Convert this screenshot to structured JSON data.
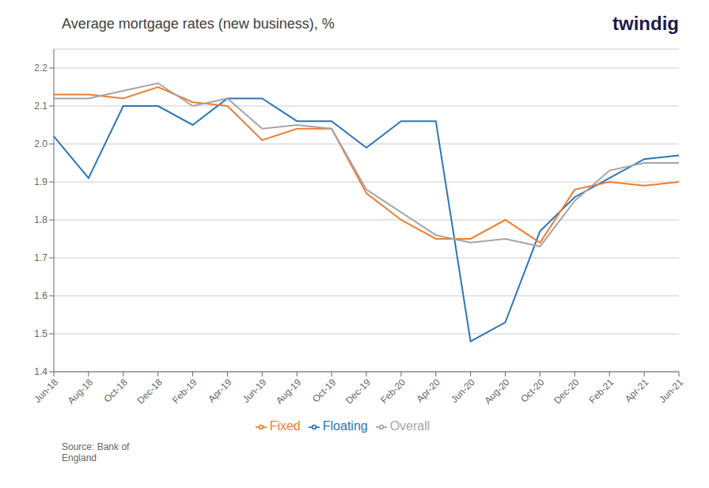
{
  "chart_data": {
    "type": "line",
    "title": "Average mortgage rates (new business), %",
    "annotations": [
      "Source: Bank of\nEngland",
      "twindig"
    ],
    "categories": [
      "Jun-18",
      "Aug-18",
      "Oct-18",
      "Dec-18",
      "Feb-19",
      "Apr-19",
      "Jun-19",
      "Aug-19",
      "Oct-19",
      "Dec-19",
      "Feb-20",
      "Apr-20",
      "Jun-20",
      "Aug-20",
      "Oct-20",
      "Dec-20",
      "Feb-21",
      "Apr-21",
      "Jun-21"
    ],
    "series": [
      {
        "name": "Floating",
        "color": "#2E75B6",
        "values": [
          2.02,
          1.91,
          2.1,
          2.1,
          2.05,
          2.12,
          2.12,
          2.06,
          2.06,
          1.99,
          2.06,
          2.06,
          1.48,
          1.53,
          1.77,
          1.86,
          1.91,
          1.96,
          1.97
        ]
      },
      {
        "name": "Fixed",
        "color": "#ED7D31",
        "values": [
          2.13,
          2.13,
          2.12,
          2.15,
          2.11,
          2.1,
          2.01,
          2.04,
          2.04,
          1.87,
          1.8,
          1.75,
          1.75,
          1.8,
          1.74,
          1.88,
          1.9,
          1.89,
          1.9
        ]
      },
      {
        "name": "Overall",
        "color": "#A5A5A5",
        "values": [
          2.12,
          2.12,
          2.14,
          2.16,
          2.1,
          2.12,
          2.04,
          2.05,
          2.04,
          1.88,
          1.82,
          1.76,
          1.74,
          1.75,
          1.73,
          1.85,
          1.93,
          1.95,
          1.95
        ]
      }
    ],
    "ylim": [
      1.4,
      2.25
    ],
    "yticks": [
      1.4,
      1.5,
      1.6,
      1.7,
      1.8,
      1.9,
      {
        "value": 2.0,
        "label": "2.0"
      },
      2.1,
      2.2
    ],
    "grid": true,
    "legend": "bottom"
  }
}
